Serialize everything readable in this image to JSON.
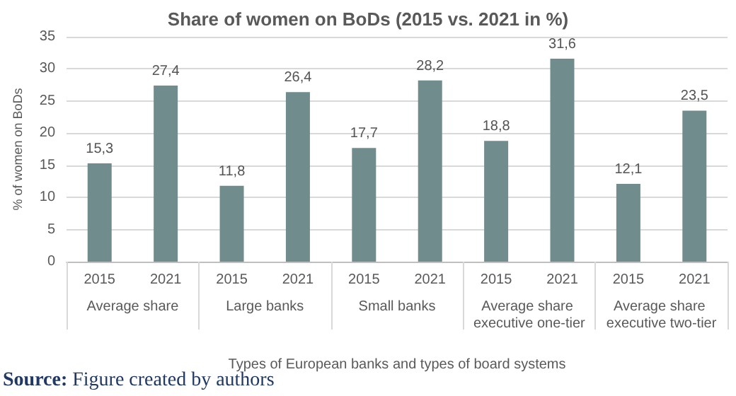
{
  "chart_data": {
    "type": "bar",
    "title": "Share of women on BoDs (2015 vs. 2021 in %)",
    "xlabel": "Types of European banks and types of board systems",
    "ylabel": "% of women on BoDs",
    "categories": [
      "Average share",
      "Large banks",
      "Small banks",
      "Average share executive one-tier",
      "Average share executive two-tier"
    ],
    "series": [
      {
        "name": "2015",
        "color": "#718c8c",
        "values": [
          15.3,
          11.8,
          17.7,
          18.8,
          12.1
        ],
        "value_labels": [
          "15,3",
          "11,8",
          "17,7",
          "18,8",
          "12,1"
        ]
      },
      {
        "name": "2021",
        "color": "#718c8c",
        "values": [
          27.4,
          26.4,
          28.2,
          31.6,
          23.5
        ],
        "value_labels": [
          "27,4",
          "26,4",
          "28,2",
          "31,6",
          "23,5"
        ]
      }
    ],
    "ylim": [
      0,
      35
    ],
    "yticks": [
      0,
      5,
      10,
      15,
      20,
      25,
      30,
      35
    ],
    "grid": "y",
    "annotations": [
      "Source: Figure created by authors"
    ]
  }
}
